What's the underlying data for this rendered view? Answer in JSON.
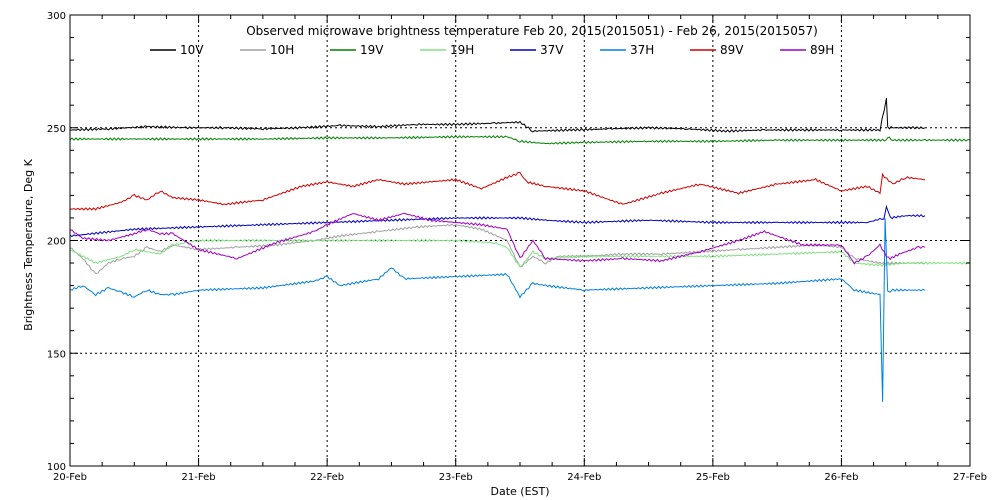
{
  "chart_data": {
    "type": "line",
    "title": "Observed microwave brightness temperature Feb 20, 2015(2015051) - Feb 26, 2015(2015057)",
    "xlabel": "Date (EST)",
    "ylabel": "Brightness Temperature, Deg K",
    "x_ticks": [
      "20-Feb",
      "21-Feb",
      "22-Feb",
      "23-Feb",
      "24-Feb",
      "25-Feb",
      "26-Feb",
      "27-Feb"
    ],
    "y_ticks": [
      "100",
      "150",
      "200",
      "250",
      "300"
    ],
    "xlim": [
      0,
      7
    ],
    "ylim": [
      100,
      300
    ],
    "x_units": "days since 20-Feb",
    "grid": true,
    "legend_position": "top",
    "series": [
      {
        "name": "10V",
        "color": "#000000",
        "x": [
          0,
          0.3,
          0.6,
          0.9,
          1.2,
          1.5,
          1.8,
          2.1,
          2.4,
          2.7,
          3.0,
          3.3,
          3.5,
          3.6,
          3.9,
          4.2,
          4.5,
          4.8,
          5.1,
          5.4,
          5.7,
          6.0,
          6.3,
          6.35,
          6.36,
          6.4,
          6.65
        ],
        "y": [
          249,
          249.5,
          250.5,
          250,
          250,
          249.5,
          250,
          251,
          250.5,
          251.5,
          251.5,
          252,
          252.5,
          248.5,
          249,
          249.5,
          250,
          249.5,
          248.5,
          249,
          249,
          249,
          249,
          263,
          250,
          250,
          250
        ]
      },
      {
        "name": "10H",
        "color": "#a0a0a0",
        "x": [
          0,
          0.1,
          0.2,
          0.3,
          0.4,
          0.5,
          0.6,
          0.7,
          0.8,
          1.0,
          1.3,
          1.6,
          1.9,
          2.1,
          2.4,
          2.7,
          3.0,
          3.2,
          3.4,
          3.5,
          3.6,
          3.7,
          3.8,
          4.0,
          4.3,
          4.6,
          4.9,
          5.2,
          5.5,
          5.8,
          6.0,
          6.1,
          6.3,
          6.5,
          6.65
        ],
        "y": [
          197,
          192,
          185,
          190,
          192,
          193,
          197,
          195,
          198,
          196,
          197,
          198,
          200,
          202,
          204,
          206,
          207,
          205,
          200,
          188,
          193,
          190,
          193,
          193,
          194,
          194,
          195,
          196,
          197,
          198,
          197,
          192,
          190,
          190,
          190
        ]
      },
      {
        "name": "19V",
        "color": "#008000",
        "x": [
          0,
          0.5,
          1.0,
          1.5,
          2.0,
          2.5,
          3.0,
          3.4,
          3.5,
          3.7,
          4.0,
          4.5,
          5.0,
          5.5,
          6.0,
          6.35,
          6.36,
          6.4,
          6.65,
          7.0
        ],
        "y": [
          245,
          245,
          245,
          245,
          245.5,
          245.5,
          246,
          246,
          244,
          243,
          243.5,
          244,
          244,
          244.5,
          244.5,
          244.5,
          246,
          244.5,
          244.5,
          244.5
        ]
      },
      {
        "name": "19H",
        "color": "#80e080",
        "x": [
          0,
          0.2,
          0.4,
          0.5,
          0.7,
          0.8,
          1.0,
          1.5,
          2.0,
          2.5,
          3.0,
          3.3,
          3.4,
          3.5,
          3.6,
          3.7,
          4.0,
          4.5,
          5.0,
          5.5,
          6.0,
          6.1,
          6.3,
          6.5,
          7.0
        ],
        "y": [
          196,
          190,
          193,
          196,
          194,
          198,
          200,
          200,
          200,
          200,
          200,
          199,
          197,
          188,
          195,
          192,
          193,
          193,
          193,
          194,
          195,
          190,
          189,
          190,
          190
        ]
      },
      {
        "name": "37V",
        "color": "#0000c0",
        "x": [
          0,
          0.5,
          1.0,
          1.5,
          2.0,
          2.5,
          3.0,
          3.5,
          3.7,
          4.0,
          4.5,
          5.0,
          5.5,
          6.0,
          6.2,
          6.33,
          6.35,
          6.38,
          6.5,
          6.65
        ],
        "y": [
          202,
          205,
          206,
          207,
          208,
          209,
          210,
          210,
          209,
          208,
          209,
          208,
          208,
          208,
          208,
          210,
          215,
          210,
          211,
          211
        ]
      },
      {
        "name": "37H",
        "color": "#0080e0",
        "x": [
          0,
          0.1,
          0.2,
          0.3,
          0.4,
          0.5,
          0.6,
          0.7,
          0.8,
          1.0,
          1.5,
          1.9,
          2.0,
          2.1,
          2.4,
          2.5,
          2.6,
          3.0,
          3.4,
          3.5,
          3.6,
          3.7,
          4.0,
          4.5,
          5.0,
          5.5,
          6.0,
          6.1,
          6.3,
          6.32,
          6.34,
          6.36,
          6.38,
          6.4,
          6.65
        ],
        "y": [
          178,
          180,
          176,
          179,
          177,
          175,
          178,
          176,
          176,
          178,
          179,
          182,
          184,
          180,
          183,
          188,
          183,
          184,
          185,
          175,
          181,
          180,
          178,
          179,
          180,
          181,
          183,
          178,
          176,
          128,
          210,
          178,
          177,
          178,
          178
        ]
      },
      {
        "name": "89V",
        "color": "#d00000",
        "x": [
          0,
          0.2,
          0.4,
          0.5,
          0.6,
          0.7,
          0.8,
          1.0,
          1.2,
          1.5,
          1.8,
          2.0,
          2.2,
          2.4,
          2.6,
          2.8,
          3.0,
          3.2,
          3.4,
          3.5,
          3.55,
          3.7,
          4.0,
          4.3,
          4.6,
          4.9,
          5.2,
          5.5,
          5.8,
          6.0,
          6.2,
          6.3,
          6.32,
          6.4,
          6.5,
          6.65
        ],
        "y": [
          214,
          214,
          217,
          220,
          218,
          222,
          219,
          218,
          216,
          218,
          224,
          226,
          224,
          227,
          225,
          226,
          227,
          223,
          228,
          230,
          226,
          224,
          222,
          216,
          221,
          225,
          221,
          225,
          227,
          222,
          224,
          221,
          229,
          225,
          228,
          227
        ]
      },
      {
        "name": "89H",
        "color": "#a000c0",
        "x": [
          0,
          0.1,
          0.3,
          0.5,
          0.6,
          0.7,
          0.8,
          1.0,
          1.3,
          1.6,
          1.9,
          2.0,
          2.2,
          2.4,
          2.6,
          2.8,
          3.0,
          3.2,
          3.4,
          3.5,
          3.6,
          3.7,
          4.0,
          4.3,
          4.6,
          4.9,
          5.2,
          5.4,
          5.7,
          6.0,
          6.1,
          6.2,
          6.3,
          6.35,
          6.38,
          6.45,
          6.6,
          6.65
        ],
        "y": [
          205,
          201,
          200,
          203,
          205,
          203,
          203,
          196,
          192,
          199,
          204,
          207,
          212,
          209,
          212,
          209,
          208,
          207,
          205,
          192,
          200,
          192,
          191,
          192,
          191,
          195,
          200,
          204,
          198,
          198,
          190,
          193,
          198,
          193,
          192,
          194,
          197,
          197
        ]
      }
    ]
  }
}
